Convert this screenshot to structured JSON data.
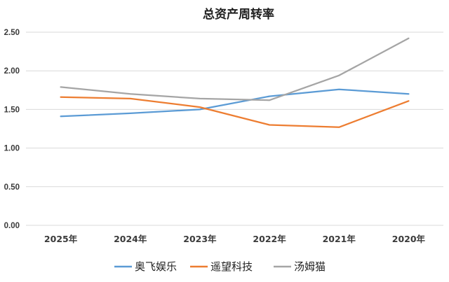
{
  "chart_data": {
    "type": "line",
    "title": "总资产周转率",
    "categories": [
      "2025年",
      "2024年",
      "2023年",
      "2022年",
      "2021年",
      "2020年"
    ],
    "ylim": [
      0,
      2.5
    ],
    "yticks": [
      "0.00",
      "0.50",
      "1.00",
      "1.50",
      "2.00",
      "2.50"
    ],
    "grid": true,
    "legend_position": "bottom",
    "series": [
      {
        "name": "奥飞娱乐",
        "color": "#5b9bd5",
        "values": [
          1.41,
          1.45,
          1.5,
          1.67,
          1.76,
          1.7
        ]
      },
      {
        "name": "遥望科技",
        "color": "#ed7d31",
        "values": [
          1.66,
          1.64,
          1.53,
          1.3,
          1.27,
          1.61
        ]
      },
      {
        "name": "汤姆猫",
        "color": "#a5a5a5",
        "values": [
          1.79,
          1.7,
          1.64,
          1.62,
          1.94,
          2.42
        ]
      }
    ]
  }
}
